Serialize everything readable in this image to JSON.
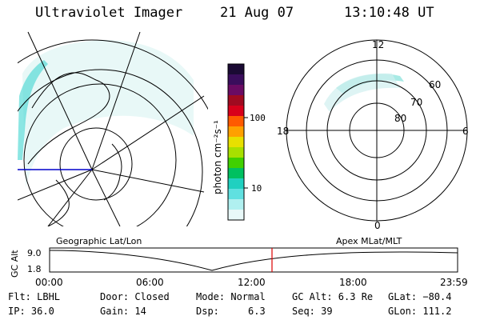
{
  "header": {
    "instrument": "Ultraviolet Imager",
    "date": "21 Aug 07",
    "time": "13:10:48 UT"
  },
  "colorbar": {
    "unit_label": "photon cm⁻²s⁻¹",
    "ticks": [
      "100",
      "10"
    ],
    "colors": [
      "#1a0a33",
      "#3a0d5c",
      "#6a0b63",
      "#a00a20",
      "#d8001a",
      "#ff5a00",
      "#ffa000",
      "#e8e000",
      "#a8e000",
      "#40d000",
      "#00c060",
      "#20d0c0",
      "#60e0e0",
      "#b0f0f0",
      "#e8f8f8"
    ]
  },
  "polar_plot": {
    "mlt_labels": [
      "12",
      "18",
      "6",
      "0"
    ],
    "lat_labels": [
      "60",
      "70",
      "80"
    ]
  },
  "timeline": {
    "ylabel": "GC Alt",
    "yticks": [
      "9.0",
      "1.8"
    ],
    "left_title": "Geographic Lat/Lon",
    "right_title": "Apex  MLat/MLT",
    "xticks": [
      "00:00",
      "06:00",
      "12:00",
      "18:00",
      "23:59"
    ],
    "current_time_color": "#dd0000"
  },
  "info_rows": [
    [
      "Flt: LBHL",
      "Door: Closed",
      "Mode: Normal",
      "GC Alt: 6.3 Re",
      "GLat: −80.4"
    ],
    [
      "IP: 36.0",
      "Gain: 14",
      "Dsp:     6.3",
      "Seq: 39",
      "GLon: 111.2"
    ]
  ]
}
